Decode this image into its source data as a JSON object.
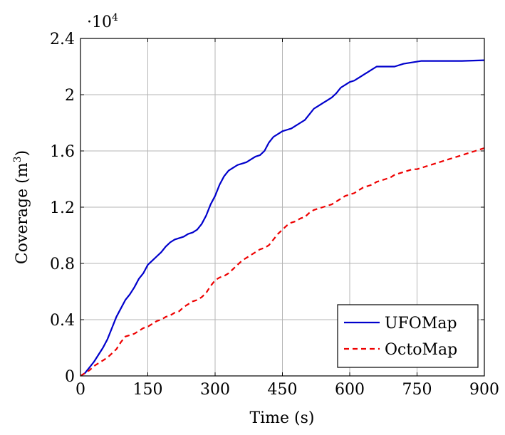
{
  "chart_data": {
    "type": "line",
    "title": "",
    "xlabel": "Time (s)",
    "ylabel_text": "Coverage (m",
    "ylabel_sup": "3",
    "ylabel_close": ")",
    "y_multiplier_base": "·10",
    "y_multiplier_exp": "4",
    "xlim": [
      0,
      900
    ],
    "ylim": [
      0,
      2.4
    ],
    "xticks": [
      0,
      150,
      300,
      450,
      600,
      750,
      900
    ],
    "xtick_labels": [
      "0",
      "150",
      "300",
      "450",
      "600",
      "750",
      "900"
    ],
    "yticks": [
      0,
      0.4,
      0.8,
      1.2,
      1.6,
      2,
      2.4
    ],
    "ytick_labels": [
      "0",
      "0.4",
      "0.8",
      "1.2",
      "1.6",
      "2",
      "2.4"
    ],
    "grid": true,
    "legend_position": "bottom-right",
    "series": [
      {
        "name": "UFOMap",
        "color": "#0000cc",
        "dash": "solid",
        "points": [
          [
            0,
            0
          ],
          [
            10,
            0.02
          ],
          [
            20,
            0.06
          ],
          [
            30,
            0.1
          ],
          [
            40,
            0.15
          ],
          [
            50,
            0.2
          ],
          [
            60,
            0.26
          ],
          [
            70,
            0.34
          ],
          [
            80,
            0.42
          ],
          [
            90,
            0.48
          ],
          [
            100,
            0.54
          ],
          [
            110,
            0.58
          ],
          [
            120,
            0.63
          ],
          [
            130,
            0.69
          ],
          [
            140,
            0.73
          ],
          [
            150,
            0.79
          ],
          [
            160,
            0.82
          ],
          [
            170,
            0.85
          ],
          [
            180,
            0.88
          ],
          [
            190,
            0.92
          ],
          [
            200,
            0.95
          ],
          [
            210,
            0.97
          ],
          [
            220,
            0.98
          ],
          [
            230,
            0.99
          ],
          [
            240,
            1.01
          ],
          [
            250,
            1.02
          ],
          [
            260,
            1.04
          ],
          [
            270,
            1.08
          ],
          [
            280,
            1.14
          ],
          [
            290,
            1.22
          ],
          [
            300,
            1.28
          ],
          [
            310,
            1.36
          ],
          [
            320,
            1.42
          ],
          [
            330,
            1.46
          ],
          [
            340,
            1.48
          ],
          [
            350,
            1.5
          ],
          [
            360,
            1.51
          ],
          [
            370,
            1.52
          ],
          [
            380,
            1.54
          ],
          [
            390,
            1.56
          ],
          [
            400,
            1.57
          ],
          [
            410,
            1.6
          ],
          [
            420,
            1.66
          ],
          [
            430,
            1.7
          ],
          [
            440,
            1.72
          ],
          [
            450,
            1.74
          ],
          [
            460,
            1.75
          ],
          [
            470,
            1.76
          ],
          [
            480,
            1.78
          ],
          [
            490,
            1.8
          ],
          [
            500,
            1.82
          ],
          [
            510,
            1.86
          ],
          [
            520,
            1.9
          ],
          [
            530,
            1.92
          ],
          [
            540,
            1.94
          ],
          [
            550,
            1.96
          ],
          [
            560,
            1.98
          ],
          [
            570,
            2.01
          ],
          [
            580,
            2.05
          ],
          [
            590,
            2.07
          ],
          [
            600,
            2.09
          ],
          [
            610,
            2.1
          ],
          [
            620,
            2.12
          ],
          [
            630,
            2.14
          ],
          [
            640,
            2.16
          ],
          [
            650,
            2.18
          ],
          [
            660,
            2.2
          ],
          [
            680,
            2.2
          ],
          [
            700,
            2.2
          ],
          [
            720,
            2.22
          ],
          [
            740,
            2.23
          ],
          [
            760,
            2.24
          ],
          [
            800,
            2.24
          ],
          [
            850,
            2.24
          ],
          [
            900,
            2.245
          ]
        ]
      },
      {
        "name": "OctoMap",
        "color": "#ee0000",
        "dash": "dashed",
        "points": [
          [
            0,
            0
          ],
          [
            10,
            0.02
          ],
          [
            20,
            0.04
          ],
          [
            30,
            0.07
          ],
          [
            40,
            0.09
          ],
          [
            50,
            0.11
          ],
          [
            60,
            0.13
          ],
          [
            70,
            0.16
          ],
          [
            80,
            0.19
          ],
          [
            90,
            0.24
          ],
          [
            100,
            0.28
          ],
          [
            110,
            0.29
          ],
          [
            120,
            0.3
          ],
          [
            130,
            0.32
          ],
          [
            140,
            0.34
          ],
          [
            150,
            0.35
          ],
          [
            160,
            0.37
          ],
          [
            170,
            0.39
          ],
          [
            180,
            0.4
          ],
          [
            190,
            0.42
          ],
          [
            200,
            0.43
          ],
          [
            210,
            0.45
          ],
          [
            220,
            0.46
          ],
          [
            230,
            0.49
          ],
          [
            240,
            0.51
          ],
          [
            250,
            0.53
          ],
          [
            260,
            0.54
          ],
          [
            270,
            0.56
          ],
          [
            280,
            0.59
          ],
          [
            290,
            0.64
          ],
          [
            300,
            0.68
          ],
          [
            310,
            0.7
          ],
          [
            320,
            0.71
          ],
          [
            330,
            0.73
          ],
          [
            340,
            0.76
          ],
          [
            350,
            0.79
          ],
          [
            360,
            0.82
          ],
          [
            370,
            0.84
          ],
          [
            380,
            0.86
          ],
          [
            390,
            0.88
          ],
          [
            400,
            0.9
          ],
          [
            410,
            0.91
          ],
          [
            420,
            0.93
          ],
          [
            430,
            0.97
          ],
          [
            440,
            1.01
          ],
          [
            450,
            1.04
          ],
          [
            460,
            1.07
          ],
          [
            470,
            1.09
          ],
          [
            480,
            1.1
          ],
          [
            490,
            1.12
          ],
          [
            500,
            1.13
          ],
          [
            510,
            1.16
          ],
          [
            520,
            1.18
          ],
          [
            530,
            1.19
          ],
          [
            540,
            1.2
          ],
          [
            550,
            1.21
          ],
          [
            560,
            1.22
          ],
          [
            570,
            1.24
          ],
          [
            580,
            1.26
          ],
          [
            590,
            1.28
          ],
          [
            600,
            1.29
          ],
          [
            610,
            1.3
          ],
          [
            620,
            1.32
          ],
          [
            630,
            1.34
          ],
          [
            640,
            1.35
          ],
          [
            650,
            1.36
          ],
          [
            660,
            1.38
          ],
          [
            670,
            1.39
          ],
          [
            680,
            1.4
          ],
          [
            690,
            1.41
          ],
          [
            700,
            1.43
          ],
          [
            710,
            1.44
          ],
          [
            720,
            1.45
          ],
          [
            730,
            1.46
          ],
          [
            740,
            1.47
          ],
          [
            750,
            1.47
          ],
          [
            760,
            1.48
          ],
          [
            770,
            1.49
          ],
          [
            780,
            1.5
          ],
          [
            790,
            1.51
          ],
          [
            800,
            1.52
          ],
          [
            810,
            1.53
          ],
          [
            820,
            1.54
          ],
          [
            830,
            1.55
          ],
          [
            840,
            1.56
          ],
          [
            850,
            1.57
          ],
          [
            860,
            1.58
          ],
          [
            870,
            1.59
          ],
          [
            880,
            1.6
          ],
          [
            890,
            1.61
          ],
          [
            900,
            1.62
          ]
        ]
      }
    ]
  }
}
